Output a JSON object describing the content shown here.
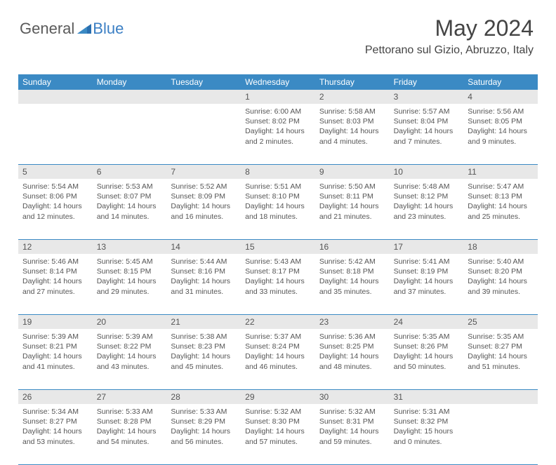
{
  "logo": {
    "part1": "General",
    "part2": "Blue"
  },
  "header": {
    "month": "May 2024",
    "location": "Pettorano sul Gizio, Abruzzo, Italy"
  },
  "colors": {
    "header_bar": "#3b8ac4",
    "daynum_bg": "#e8e8e8",
    "text": "#555555",
    "logo_gray": "#5a5a5a",
    "logo_blue": "#3b7fc4",
    "background": "#ffffff"
  },
  "weekdays": [
    "Sunday",
    "Monday",
    "Tuesday",
    "Wednesday",
    "Thursday",
    "Friday",
    "Saturday"
  ],
  "weeks": [
    {
      "nums": [
        "",
        "",
        "",
        "1",
        "2",
        "3",
        "4"
      ],
      "cells": [
        {
          "sunrise": "",
          "sunset": "",
          "daylight": ""
        },
        {
          "sunrise": "",
          "sunset": "",
          "daylight": ""
        },
        {
          "sunrise": "",
          "sunset": "",
          "daylight": ""
        },
        {
          "sunrise": "Sunrise: 6:00 AM",
          "sunset": "Sunset: 8:02 PM",
          "daylight": "Daylight: 14 hours and 2 minutes."
        },
        {
          "sunrise": "Sunrise: 5:58 AM",
          "sunset": "Sunset: 8:03 PM",
          "daylight": "Daylight: 14 hours and 4 minutes."
        },
        {
          "sunrise": "Sunrise: 5:57 AM",
          "sunset": "Sunset: 8:04 PM",
          "daylight": "Daylight: 14 hours and 7 minutes."
        },
        {
          "sunrise": "Sunrise: 5:56 AM",
          "sunset": "Sunset: 8:05 PM",
          "daylight": "Daylight: 14 hours and 9 minutes."
        }
      ]
    },
    {
      "nums": [
        "5",
        "6",
        "7",
        "8",
        "9",
        "10",
        "11"
      ],
      "cells": [
        {
          "sunrise": "Sunrise: 5:54 AM",
          "sunset": "Sunset: 8:06 PM",
          "daylight": "Daylight: 14 hours and 12 minutes."
        },
        {
          "sunrise": "Sunrise: 5:53 AM",
          "sunset": "Sunset: 8:07 PM",
          "daylight": "Daylight: 14 hours and 14 minutes."
        },
        {
          "sunrise": "Sunrise: 5:52 AM",
          "sunset": "Sunset: 8:09 PM",
          "daylight": "Daylight: 14 hours and 16 minutes."
        },
        {
          "sunrise": "Sunrise: 5:51 AM",
          "sunset": "Sunset: 8:10 PM",
          "daylight": "Daylight: 14 hours and 18 minutes."
        },
        {
          "sunrise": "Sunrise: 5:50 AM",
          "sunset": "Sunset: 8:11 PM",
          "daylight": "Daylight: 14 hours and 21 minutes."
        },
        {
          "sunrise": "Sunrise: 5:48 AM",
          "sunset": "Sunset: 8:12 PM",
          "daylight": "Daylight: 14 hours and 23 minutes."
        },
        {
          "sunrise": "Sunrise: 5:47 AM",
          "sunset": "Sunset: 8:13 PM",
          "daylight": "Daylight: 14 hours and 25 minutes."
        }
      ]
    },
    {
      "nums": [
        "12",
        "13",
        "14",
        "15",
        "16",
        "17",
        "18"
      ],
      "cells": [
        {
          "sunrise": "Sunrise: 5:46 AM",
          "sunset": "Sunset: 8:14 PM",
          "daylight": "Daylight: 14 hours and 27 minutes."
        },
        {
          "sunrise": "Sunrise: 5:45 AM",
          "sunset": "Sunset: 8:15 PM",
          "daylight": "Daylight: 14 hours and 29 minutes."
        },
        {
          "sunrise": "Sunrise: 5:44 AM",
          "sunset": "Sunset: 8:16 PM",
          "daylight": "Daylight: 14 hours and 31 minutes."
        },
        {
          "sunrise": "Sunrise: 5:43 AM",
          "sunset": "Sunset: 8:17 PM",
          "daylight": "Daylight: 14 hours and 33 minutes."
        },
        {
          "sunrise": "Sunrise: 5:42 AM",
          "sunset": "Sunset: 8:18 PM",
          "daylight": "Daylight: 14 hours and 35 minutes."
        },
        {
          "sunrise": "Sunrise: 5:41 AM",
          "sunset": "Sunset: 8:19 PM",
          "daylight": "Daylight: 14 hours and 37 minutes."
        },
        {
          "sunrise": "Sunrise: 5:40 AM",
          "sunset": "Sunset: 8:20 PM",
          "daylight": "Daylight: 14 hours and 39 minutes."
        }
      ]
    },
    {
      "nums": [
        "19",
        "20",
        "21",
        "22",
        "23",
        "24",
        "25"
      ],
      "cells": [
        {
          "sunrise": "Sunrise: 5:39 AM",
          "sunset": "Sunset: 8:21 PM",
          "daylight": "Daylight: 14 hours and 41 minutes."
        },
        {
          "sunrise": "Sunrise: 5:39 AM",
          "sunset": "Sunset: 8:22 PM",
          "daylight": "Daylight: 14 hours and 43 minutes."
        },
        {
          "sunrise": "Sunrise: 5:38 AM",
          "sunset": "Sunset: 8:23 PM",
          "daylight": "Daylight: 14 hours and 45 minutes."
        },
        {
          "sunrise": "Sunrise: 5:37 AM",
          "sunset": "Sunset: 8:24 PM",
          "daylight": "Daylight: 14 hours and 46 minutes."
        },
        {
          "sunrise": "Sunrise: 5:36 AM",
          "sunset": "Sunset: 8:25 PM",
          "daylight": "Daylight: 14 hours and 48 minutes."
        },
        {
          "sunrise": "Sunrise: 5:35 AM",
          "sunset": "Sunset: 8:26 PM",
          "daylight": "Daylight: 14 hours and 50 minutes."
        },
        {
          "sunrise": "Sunrise: 5:35 AM",
          "sunset": "Sunset: 8:27 PM",
          "daylight": "Daylight: 14 hours and 51 minutes."
        }
      ]
    },
    {
      "nums": [
        "26",
        "27",
        "28",
        "29",
        "30",
        "31",
        ""
      ],
      "cells": [
        {
          "sunrise": "Sunrise: 5:34 AM",
          "sunset": "Sunset: 8:27 PM",
          "daylight": "Daylight: 14 hours and 53 minutes."
        },
        {
          "sunrise": "Sunrise: 5:33 AM",
          "sunset": "Sunset: 8:28 PM",
          "daylight": "Daylight: 14 hours and 54 minutes."
        },
        {
          "sunrise": "Sunrise: 5:33 AM",
          "sunset": "Sunset: 8:29 PM",
          "daylight": "Daylight: 14 hours and 56 minutes."
        },
        {
          "sunrise": "Sunrise: 5:32 AM",
          "sunset": "Sunset: 8:30 PM",
          "daylight": "Daylight: 14 hours and 57 minutes."
        },
        {
          "sunrise": "Sunrise: 5:32 AM",
          "sunset": "Sunset: 8:31 PM",
          "daylight": "Daylight: 14 hours and 59 minutes."
        },
        {
          "sunrise": "Sunrise: 5:31 AM",
          "sunset": "Sunset: 8:32 PM",
          "daylight": "Daylight: 15 hours and 0 minutes."
        },
        {
          "sunrise": "",
          "sunset": "",
          "daylight": ""
        }
      ]
    }
  ]
}
